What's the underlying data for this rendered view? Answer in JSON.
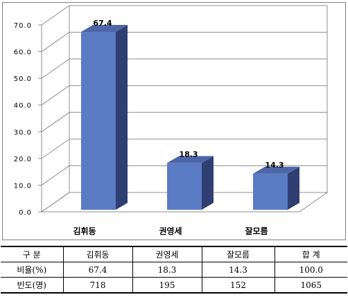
{
  "chart_data": {
    "type": "bar",
    "categories": [
      "김휘동",
      "권영세",
      "잘모름"
    ],
    "values": [
      67.4,
      18.3,
      14.3
    ],
    "data_labels": [
      "67.4",
      "18.3",
      "14.3"
    ],
    "ylim": [
      0,
      70
    ],
    "yticks": [
      "0.0",
      "10.0",
      "20.0",
      "30.0",
      "40.0",
      "50.0",
      "60.0",
      "70.0"
    ],
    "grid": true,
    "three_d": true,
    "legend": "none",
    "bar_color": "#5b7bc4"
  },
  "table": {
    "headers": [
      "구 분",
      "김휘동",
      "권영세",
      "잘모름",
      "합 계"
    ],
    "rows": [
      [
        "비율(%)",
        "67.4",
        "18.3",
        "14.3",
        "100.0"
      ],
      [
        "빈도(명)",
        "718",
        "195",
        "152",
        "1065"
      ]
    ]
  }
}
